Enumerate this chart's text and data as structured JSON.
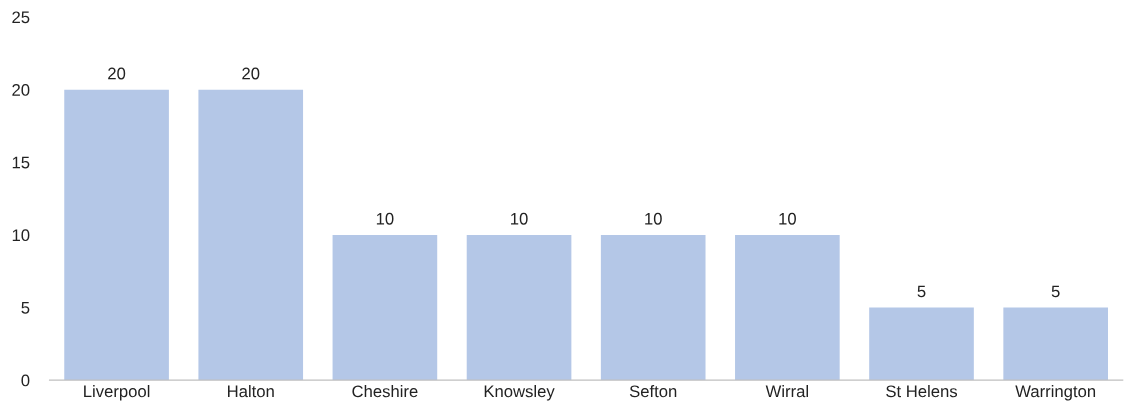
{
  "chart_data": {
    "type": "bar",
    "categories": [
      "Liverpool",
      "Halton",
      "Cheshire",
      "Knowsley",
      "Sefton",
      "Wirral",
      "St Helens",
      "Warrington"
    ],
    "values": [
      20,
      20,
      10,
      10,
      10,
      10,
      5,
      5
    ],
    "color": "#b4c7e7",
    "ylim": [
      0,
      25
    ],
    "yticks": [
      0,
      5,
      10,
      15,
      20,
      25
    ],
    "grid": false,
    "legend": false,
    "data_labels": true
  }
}
